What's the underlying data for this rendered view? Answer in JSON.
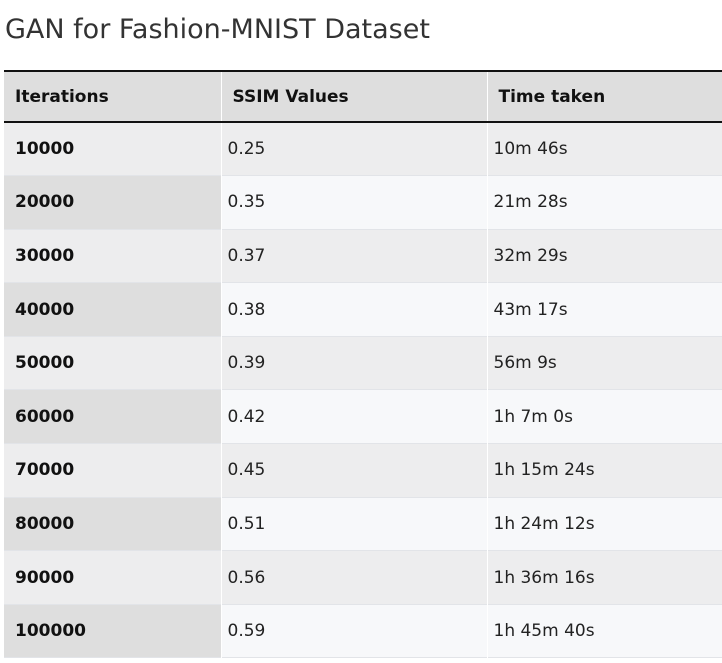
{
  "title": "GAN for Fashion-MNIST Dataset",
  "table": {
    "headers": [
      "Iterations",
      "SSIM Values",
      "Time taken"
    ],
    "rows": [
      [
        "10000",
        "0.25",
        "10m 46s"
      ],
      [
        "20000",
        "0.35",
        "21m 28s"
      ],
      [
        "30000",
        "0.37",
        "32m 29s"
      ],
      [
        "40000",
        "0.38",
        "43m 17s"
      ],
      [
        "50000",
        "0.39",
        "56m 9s"
      ],
      [
        "60000",
        "0.42",
        "1h 7m 0s"
      ],
      [
        "70000",
        "0.45",
        "1h 15m 24s"
      ],
      [
        "80000",
        "0.51",
        "1h 24m 12s"
      ],
      [
        "90000",
        "0.56",
        "1h 36m 16s"
      ],
      [
        "100000",
        "0.59",
        "1h 45m 40s"
      ]
    ]
  }
}
